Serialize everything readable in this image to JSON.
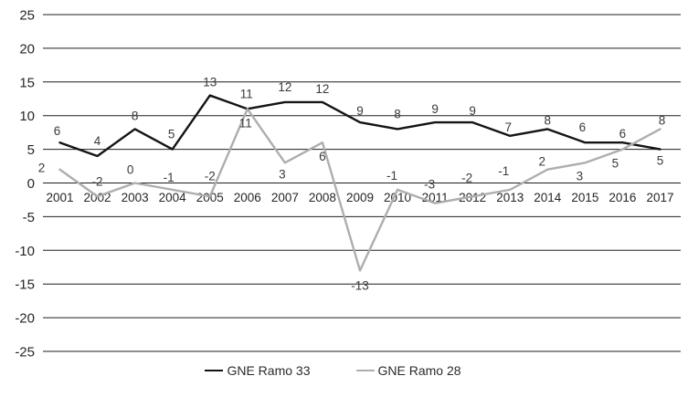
{
  "chart_data": {
    "type": "line",
    "title": "",
    "xlabel": "",
    "ylabel": "",
    "categories": [
      "2001",
      "2002",
      "2003",
      "2004",
      "2005",
      "2006",
      "2007",
      "2008",
      "2009",
      "2010",
      "2011",
      "2012",
      "2013",
      "2014",
      "2015",
      "2016",
      "2017"
    ],
    "series": [
      {
        "name": "GNE Ramo 33",
        "color": "#141414",
        "values": [
          6,
          4,
          8,
          5,
          13,
          11,
          12,
          12,
          9,
          8,
          9,
          9,
          7,
          8,
          6,
          6,
          5
        ],
        "label_offsets": [
          [
            -3,
            -8
          ],
          [
            0,
            -12
          ],
          [
            0,
            -10
          ],
          [
            -1,
            -12
          ],
          [
            0,
            -10
          ],
          [
            -1,
            -12
          ],
          [
            0,
            -12
          ],
          [
            0,
            -10
          ],
          [
            0,
            -8
          ],
          [
            0,
            -12
          ],
          [
            0,
            -10
          ],
          [
            0,
            -8
          ],
          [
            -2,
            -5
          ],
          [
            0,
            -5
          ],
          [
            -3,
            -12
          ],
          [
            0,
            -5
          ],
          [
            0,
            17
          ]
        ]
      },
      {
        "name": "GNE Ramo 28",
        "color": "#aeaeae",
        "values": [
          2,
          -2,
          0,
          -1,
          -2,
          11,
          3,
          6,
          -13,
          -1,
          -3,
          -2,
          -1,
          2,
          3,
          5,
          8
        ],
        "label_offsets": [
          [
            -20,
            3
          ],
          [
            0,
            -12
          ],
          [
            -5,
            -10
          ],
          [
            -4,
            -9
          ],
          [
            0,
            -18
          ],
          [
            -2,
            20
          ],
          [
            -3,
            17
          ],
          [
            0,
            20
          ],
          [
            0,
            21
          ],
          [
            -6,
            -11
          ],
          [
            -6,
            -16
          ],
          [
            -6,
            -16
          ],
          [
            -7,
            -16
          ],
          [
            -6,
            -4
          ],
          [
            -6,
            19
          ],
          [
            -8,
            20
          ],
          [
            2,
            -5
          ]
        ]
      }
    ],
    "ylim": [
      -25,
      25
    ],
    "ytick_step": 5,
    "ytick_labels": [
      "25",
      "20",
      "15",
      "10",
      "5",
      "0",
      "-5",
      "-10",
      "-15",
      "-20",
      "-25"
    ],
    "grid": true,
    "legend_position": "bottom",
    "gridline_color": "#1f1f1f",
    "tick_label_color": "#262626",
    "data_label_color": "#3a3a3a"
  }
}
